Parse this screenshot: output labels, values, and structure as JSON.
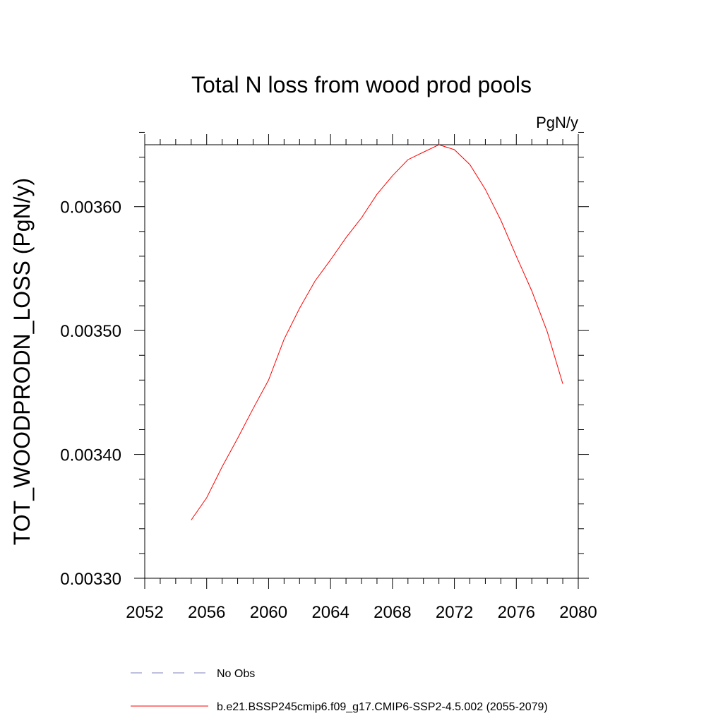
{
  "chart_data": {
    "type": "line",
    "title": "Total N loss from wood prod pools",
    "units_label": "PgN/y",
    "ylabel": "TOT_WOODPRODN_LOSS  (PgN/y)",
    "xlabel": "",
    "xlim": [
      2052,
      2080
    ],
    "ylim": [
      0.0033,
      0.00365
    ],
    "x_ticks": [
      "2052",
      "2056",
      "2060",
      "2064",
      "2068",
      "2072",
      "2076",
      "2080"
    ],
    "y_ticks": [
      "0.00330",
      "0.00340",
      "0.00350",
      "0.00360"
    ],
    "grid": false,
    "series": [
      {
        "name": "b.e21.BSSP245cmip6.f09_g17.CMIP6-SSP2-4.5.002 (2055-2079)",
        "color": "#ff0000",
        "x": [
          2055,
          2056,
          2057,
          2058,
          2059,
          2060,
          2061,
          2062,
          2063,
          2064,
          2065,
          2066,
          2067,
          2068,
          2069,
          2070,
          2071,
          2072,
          2073,
          2074,
          2075,
          2076,
          2077,
          2078,
          2079
        ],
        "y": [
          0.003347,
          0.003365,
          0.00339,
          0.003413,
          0.003437,
          0.00346,
          0.003493,
          0.003518,
          0.00354,
          0.003557,
          0.003575,
          0.003591,
          0.00361,
          0.003625,
          0.003638,
          0.003644,
          0.00365,
          0.003646,
          0.003634,
          0.003614,
          0.003589,
          0.00356,
          0.003532,
          0.003499,
          0.003457
        ]
      }
    ],
    "legend": {
      "placement": "bottom",
      "entries": [
        {
          "label": "No Obs",
          "color": "#7f7fbf",
          "style": "dashed"
        },
        {
          "label": "b.e21.BSSP245cmip6.f09_g17.CMIP6-SSP2-4.5.002 (2055-2079)",
          "color": "#ff0000",
          "style": "solid"
        }
      ]
    }
  }
}
